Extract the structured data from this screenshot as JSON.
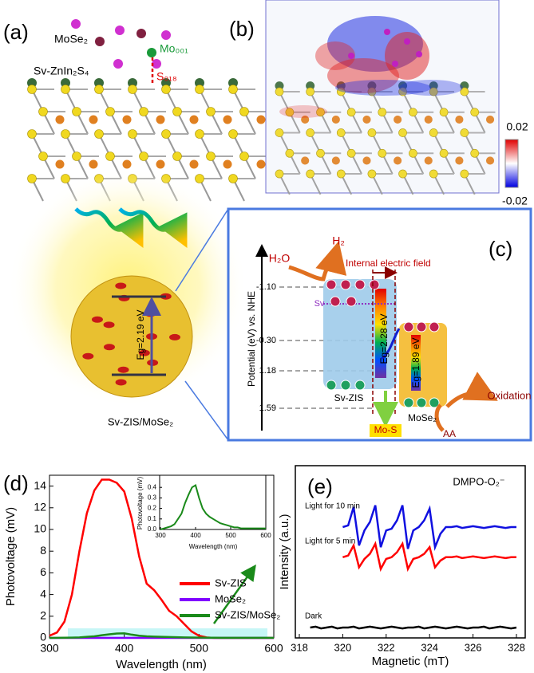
{
  "labels": [
    "(a)",
    "(b)",
    "(c)",
    "(d)",
    "(e)"
  ],
  "panel_a": {
    "cluster": "MoSe₂",
    "mo_site": "Mo₀₀₁",
    "substrate": "Sv-ZnIn₂S₄",
    "s_site": "S₀₁₈"
  },
  "panel_b": {
    "colorbar_max": "0.02",
    "colorbar_min": "-0.02"
  },
  "panel_c": {
    "water": "H₂O",
    "hydrogen": "H₂",
    "field": "Internal electric field",
    "axis_label": "Potential (eV) vs. NHE",
    "levels": [
      "-1.10",
      "-0.30",
      "1.18",
      "1.59"
    ],
    "vacancy": "Sv",
    "zis_gap": "Eg=2.28 eV",
    "zis": "Sv-ZIS",
    "mose2_gap": "Eg=1.89 eV",
    "mose2": "MoSe₂",
    "bond": "Mo-S",
    "oxidation": "Oxidation",
    "aa": "AA",
    "sphere_gap": "Eg=2.19 eV",
    "composite": "Sv-ZIS/MoSe₂"
  },
  "chart_data": [
    {
      "type": "line",
      "xlabel": "Wavelength (nm)",
      "ylabel": "Photovoltage (mV)",
      "x": [
        300,
        310,
        320,
        330,
        340,
        350,
        360,
        370,
        380,
        390,
        400,
        410,
        420,
        430,
        440,
        450,
        460,
        470,
        480,
        490,
        500,
        510,
        520,
        530,
        540,
        550,
        560,
        570,
        580,
        590,
        600
      ],
      "xlim": [
        300,
        600
      ],
      "ylim": [
        0,
        15
      ],
      "xticks": [
        300,
        400,
        500,
        600
      ],
      "yticks": [
        0,
        2,
        4,
        6,
        8,
        10,
        12,
        14
      ],
      "legend": "center right",
      "series": [
        {
          "name": "Sv-ZIS",
          "color": "#ff0000",
          "values": [
            0.2,
            0.5,
            1.5,
            4,
            8,
            11.5,
            13.6,
            14.6,
            14.6,
            14.3,
            13.5,
            11,
            7.5,
            5,
            4.4,
            3.5,
            2.5,
            2.0,
            1.3,
            0.6,
            0.2,
            0.05,
            0,
            0,
            0,
            0,
            0,
            0,
            0,
            0,
            0
          ]
        },
        {
          "name": "MoSe₂",
          "color": "#8000ff",
          "values": [
            0,
            0,
            0,
            0,
            0,
            0,
            0,
            0,
            0,
            0,
            0,
            0,
            0,
            0,
            0,
            0,
            0,
            0,
            0,
            0,
            0,
            0,
            0,
            0,
            0,
            0,
            0,
            0,
            0,
            0,
            0
          ]
        },
        {
          "name": "Sv-ZIS/MoSe₂",
          "color": "#1a8a1a",
          "values": [
            0,
            0.01,
            0.02,
            0.03,
            0.05,
            0.1,
            0.15,
            0.25,
            0.33,
            0.4,
            0.42,
            0.3,
            0.2,
            0.15,
            0.12,
            0.1,
            0.08,
            0.06,
            0.05,
            0.04,
            0.03,
            0.02,
            0.02,
            0.01,
            0.01,
            0.01,
            0.01,
            0.01,
            0.01,
            0.01,
            0.01
          ]
        }
      ],
      "inset": {
        "xlabel": "Wavelength (nm)",
        "ylabel": "Photovoltage (mV)",
        "xlim": [
          300,
          600
        ],
        "ylim": [
          0,
          0.5
        ],
        "xticks": [
          300,
          400,
          500,
          600
        ],
        "yticks": [
          {
            "value": 0,
            "label": "0.0"
          },
          {
            "value": 0.1,
            "label": "0.1"
          },
          {
            "value": 0.2,
            "label": "0.2"
          },
          {
            "value": 0.3,
            "label": "0.3"
          },
          {
            "value": 0.4,
            "label": "0.4"
          }
        ]
      }
    },
    {
      "type": "line",
      "title": "DMPO-O₂⁻",
      "xlabel": "Magnetic (mT)",
      "ylabel": "Intensity (a.u.)",
      "x": [
        318.5,
        318.75,
        319,
        319.25,
        319.5,
        319.75,
        320,
        320.25,
        320.5,
        320.75,
        321,
        321.25,
        321.5,
        321.75,
        322,
        322.25,
        322.5,
        322.75,
        323,
        323.25,
        323.5,
        323.75,
        324,
        324.25,
        324.5,
        324.75,
        325,
        325.25,
        325.5,
        325.75,
        326,
        326.25,
        326.5,
        326.75,
        327,
        327.25,
        327.5,
        327.75,
        328
      ],
      "xlim": [
        318,
        328
      ],
      "ylim": [
        0,
        10
      ],
      "xticks": [
        318,
        320,
        322,
        324,
        326,
        328
      ],
      "series": [
        {
          "name": "Dark",
          "color": "#000000",
          "values": [
            1.0,
            1.05,
            0.95,
            1.0,
            1.05,
            0.95,
            1.0,
            1.0,
            1.05,
            0.95,
            1.0,
            1.05,
            1.0,
            0.95,
            1.0,
            1.05,
            1.0,
            0.95,
            1.0,
            1.0,
            1.05,
            0.95,
            1.0,
            1.05,
            1.0,
            0.95,
            1.0,
            1.05,
            1.0,
            0.95,
            1.0,
            1.0,
            1.05,
            0.95,
            1.0,
            1.05,
            1.0,
            0.95,
            1.0
          ]
        },
        {
          "name": "Light for 5 min",
          "color": "#ff0000",
          "values": [
            null,
            null,
            null,
            null,
            null,
            null,
            5.2,
            5.3,
            5.9,
            4.6,
            5.1,
            5.4,
            6.0,
            4.5,
            5.1,
            5.2,
            5.5,
            6.0,
            4.5,
            5.1,
            5.2,
            5.4,
            5.8,
            4.6,
            5.0,
            5.2,
            5.2,
            5.25,
            5.15,
            5.2,
            5.25,
            5.2,
            5.15,
            5.2,
            5.25,
            5.2,
            5.15,
            5.2,
            5.2
          ]
        },
        {
          "name": "Light for 10 min",
          "color": "#1010e0",
          "values": [
            null,
            null,
            null,
            null,
            null,
            null,
            7.0,
            7.1,
            8.2,
            5.9,
            6.8,
            7.3,
            8.3,
            5.8,
            6.8,
            6.9,
            7.4,
            8.3,
            5.7,
            6.8,
            7.0,
            7.4,
            8.1,
            5.8,
            6.6,
            7.0,
            7.0,
            7.05,
            6.95,
            7.0,
            7.05,
            7.0,
            6.95,
            7.0,
            7.05,
            7.0,
            6.95,
            7.0,
            7.0
          ]
        }
      ]
    }
  ]
}
